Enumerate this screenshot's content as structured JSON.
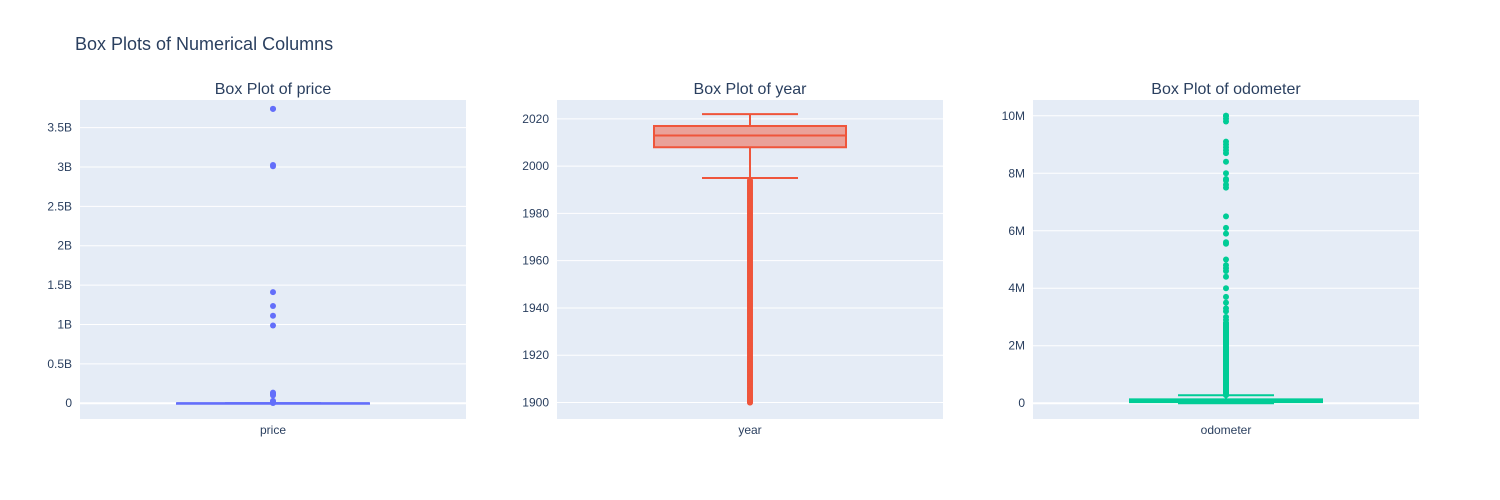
{
  "figure_title": "Box Plots of Numerical Columns",
  "colors": {
    "plot_bg": "#E5ECF6",
    "grid": "#ffffff",
    "text": "#2a3f5f"
  },
  "chart_data": [
    {
      "type": "box",
      "title": "Box Plot of price",
      "category": "price",
      "color": "#636EFA",
      "fill": "rgba(99,110,250,0.5)",
      "ylim": [
        -200000000,
        3850000000
      ],
      "yticks": [
        0,
        500000000,
        1000000000,
        1500000000,
        2000000000,
        2500000000,
        3000000000,
        3500000000
      ],
      "yticklabels": [
        "0",
        "0.5B",
        "1B",
        "1.5B",
        "2B",
        "2.5B",
        "3B",
        "3.5B"
      ],
      "box": {
        "lowerfence": 0,
        "q1": 5900,
        "median": 13950,
        "q3": 26486,
        "upperfence": 57340
      },
      "outliers": [
        3736928711,
        3736928711,
        3024942282,
        3009548743,
        1410065407,
        1234567890,
        1111111111,
        987654321,
        135008900,
        123456789,
        113456789,
        99999999,
        30000000,
        17000000,
        12345678,
        11111111,
        10004000,
        6995495,
        3226714
      ]
    },
    {
      "type": "box",
      "title": "Box Plot of year",
      "category": "year",
      "color": "#EF553B",
      "fill": "rgba(239,85,59,0.5)",
      "ylim": [
        1893,
        2028
      ],
      "yticks": [
        1900,
        1920,
        1940,
        1960,
        1980,
        2000,
        2020
      ],
      "yticklabels": [
        "1900",
        "1920",
        "1940",
        "1960",
        "1980",
        "2000",
        "2020"
      ],
      "box": {
        "lowerfence": 1995,
        "q1": 2008,
        "median": 2013,
        "q3": 2017,
        "upperfence": 2022
      },
      "outliers_range": [
        1900,
        1994
      ],
      "outliers_extra": [
        1900,
        1901,
        1902,
        1903,
        1905,
        1909,
        1910,
        1913,
        1915,
        1916
      ]
    },
    {
      "type": "box",
      "title": "Box Plot of odometer",
      "category": "odometer",
      "color": "#00CC96",
      "fill": "rgba(0,204,150,0.5)",
      "ylim": [
        -550000,
        10550000
      ],
      "yticks": [
        0,
        2000000,
        4000000,
        6000000,
        8000000,
        10000000
      ],
      "yticklabels": [
        "0",
        "2M",
        "4M",
        "6M",
        "8M",
        "10M"
      ],
      "box": {
        "lowerfence": 0,
        "q1": 37704,
        "median": 85548,
        "q3": 133542,
        "upperfence": 277292
      },
      "outliers_dense_range": [
        280000,
        2800000
      ],
      "outliers": [
        10000000,
        9999999,
        9900000,
        9800000,
        9100000,
        9000000,
        8900000,
        8800000,
        8700000,
        8400000,
        8000000,
        7800000,
        7750000,
        7600000,
        7500000,
        6500000,
        6100000,
        5900000,
        5600000,
        5550000,
        5000000,
        4800000,
        4700000,
        4600000,
        4400000,
        4000000,
        3700000,
        3500000,
        3300000,
        3200000,
        3000000,
        2900000
      ]
    }
  ]
}
